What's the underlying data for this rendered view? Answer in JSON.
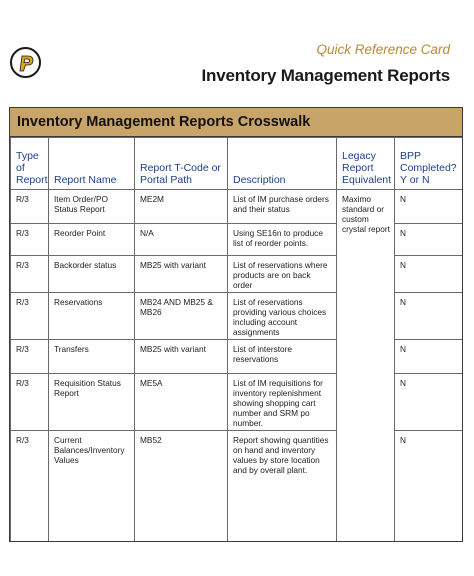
{
  "header": {
    "subtitle": "Quick Reference Card",
    "title": "Inventory Management Reports"
  },
  "document": {
    "title": "Inventory Management Reports Crosswalk",
    "columns": [
      "Type of Report",
      "Report Name",
      "Report T-Code or Portal Path",
      "Description",
      "Legacy Report Equivalent",
      "BPP Completed? Y or N"
    ],
    "legacy_note": "Maximo standard or custom crystal report",
    "rows": [
      {
        "type": "R/3",
        "name": "Item Order/PO Status Report",
        "tcode": "ME2M",
        "description": "List of IM purchase orders and their status",
        "completed": "N"
      },
      {
        "type": "R/3",
        "name": "Reorder Point",
        "tcode": "N/A",
        "description": "Using SE16n to produce list of reorder points.",
        "completed": "N"
      },
      {
        "type": "R/3",
        "name": "Backorder status",
        "tcode": "MB25 with variant",
        "description": "List of reservations where products are on back order",
        "completed": "N"
      },
      {
        "type": "R/3",
        "name": "Reservations",
        "tcode": "MB24 AND MB25 & MB26",
        "description": "List of reservations providing various choices including account assignments",
        "completed": "N"
      },
      {
        "type": "R/3",
        "name": "Transfers",
        "tcode": "MB25 with variant",
        "description": "List of interstore reservations",
        "completed": "N"
      },
      {
        "type": "R/3",
        "name": "Requisition Status Report",
        "tcode": "ME5A",
        "description": "List of IM requisitions for inventory replenishment showing shopping cart number and SRM po number.",
        "completed": "N"
      },
      {
        "type": "R/3",
        "name": "Current Balances/Inventory Values",
        "tcode": "MB52",
        "description": "Report showing quantities on hand and inventory values by store location and by overall plant.",
        "completed": "N"
      }
    ]
  },
  "colors": {
    "title_band": "#c8a468",
    "header_text": "#1d3f8a",
    "subtitle_text": "#b58a3a"
  },
  "icons": {
    "logo": "brand-logo-icon"
  }
}
